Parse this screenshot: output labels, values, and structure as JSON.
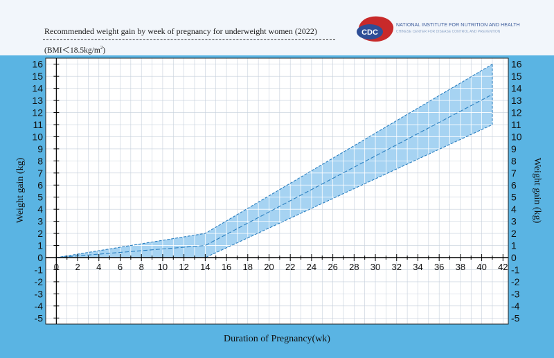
{
  "header": {
    "title": "Recommended  weight gain by week of pregnancy for underweight women (2022)",
    "subtitle_prefix": "(BMI＜18.5kg/m",
    "subtitle_sup": "2",
    "subtitle_suffix": ")"
  },
  "logo": {
    "badge": "CDC",
    "line1": "NATIONAL INSTITUTE FOR NUTRITION AND HEALTH",
    "line2": "CHINESE CENTER FOR DISEASE CONTROL AND PREVENTION",
    "colors": {
      "badge": "#2e4e96",
      "map": "#c82a2a"
    }
  },
  "chart_data": {
    "type": "area",
    "title": "Recommended  weight gain by week of pregnancy for underweight women (2022)",
    "xlabel": "Duration of Pregnancy(wk)",
    "ylabel": "Weight gain (kg)",
    "ylabel_right": "Weight gain (kg)",
    "xlim": [
      -1,
      42.5
    ],
    "ylim": [
      -5.5,
      16.5
    ],
    "x_ticks": [
      0,
      2,
      4,
      6,
      8,
      10,
      12,
      14,
      16,
      18,
      20,
      22,
      24,
      26,
      28,
      30,
      32,
      34,
      36,
      38,
      40,
      42
    ],
    "x_tick_labels": [
      "0",
      "2",
      "4",
      "6",
      "8",
      "10",
      "12",
      "14",
      "16",
      "18",
      "20",
      "22",
      "24",
      "26",
      "28",
      "30",
      "32",
      "34",
      "36",
      "38",
      "40",
      "42"
    ],
    "y_ticks": [
      -5,
      -4,
      -3,
      -2,
      -1,
      0,
      1,
      2,
      3,
      4,
      5,
      6,
      7,
      8,
      9,
      10,
      11,
      12,
      13,
      14,
      15,
      16
    ],
    "y_tick_labels": [
      "-5",
      "-4",
      "-3",
      "-2",
      "-1",
      "0",
      "1",
      "2",
      "3",
      "4",
      "5",
      "6",
      "7",
      "8",
      "9",
      "10",
      "11",
      "12",
      "13",
      "14",
      "15",
      "16"
    ],
    "grid": true,
    "series": [
      {
        "x": [
          0,
          14,
          41
        ],
        "y": [
          0,
          2,
          16
        ]
      },
      {
        "x": [
          0,
          14,
          41
        ],
        "y": [
          0,
          1,
          13.5
        ]
      },
      {
        "x": [
          0,
          14,
          41
        ],
        "y": [
          0,
          0,
          11
        ]
      }
    ],
    "colors": {
      "band_fill": "#a6d3f2",
      "band_line": "#2a7fc0",
      "grid": "#c5cfdb",
      "background": "#5ab4e3"
    }
  }
}
